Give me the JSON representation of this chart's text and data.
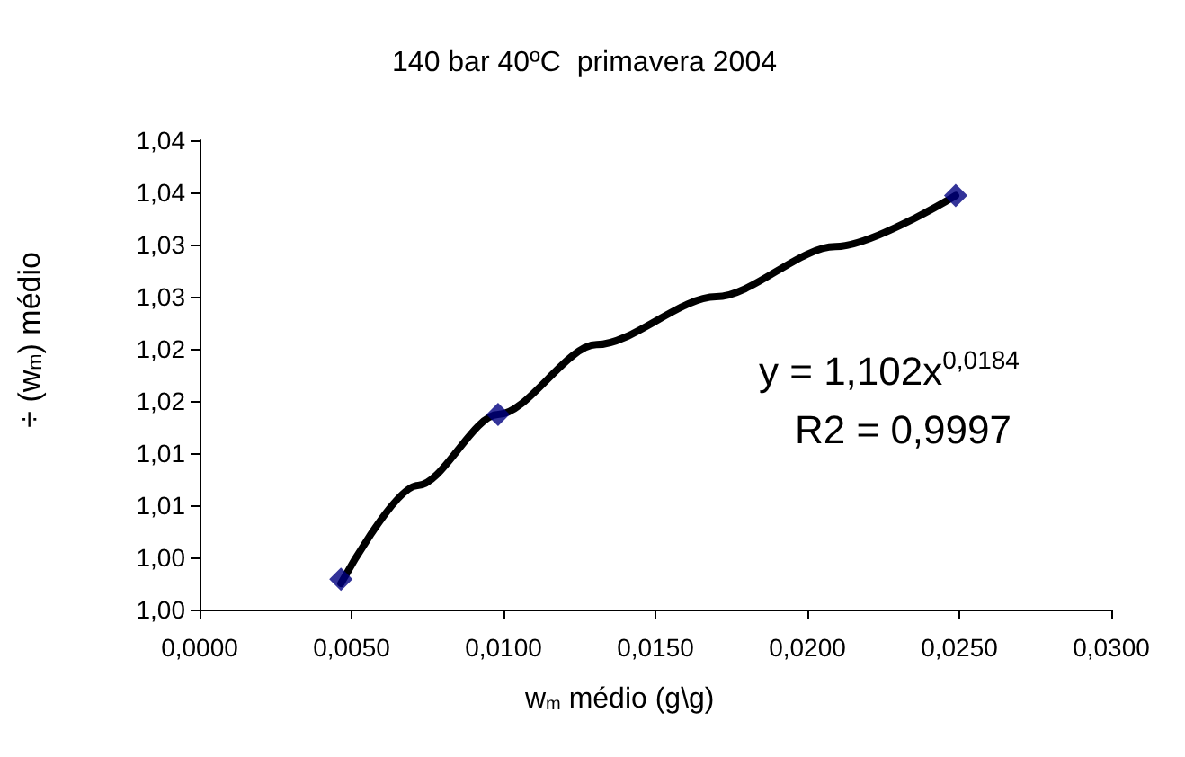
{
  "chart_data": {
    "type": "scatter",
    "title": "140 bar 40ºC  primavera 2004",
    "xlabel": "w$_{m}$ médio (g\\g)",
    "ylabel": "÷ (w$_{m}$) médio",
    "annotations": [
      "y = 1,102x$^{0,0184}$",
      "R2 = 0,9997"
    ],
    "series": [
      {
        "type": "line",
        "color": "#000000",
        "x": [
          0.00465,
          0.00718,
          0.00982,
          0.01306,
          0.017,
          0.02092,
          0.02488
        ],
        "values": [
          1.0025,
          1.0119,
          1.0187,
          1.0254,
          1.03,
          1.0348,
          1.0397
        ],
        "marker": "none"
      },
      {
        "color": "#000080",
        "x": [
          0.00465,
          0.00982,
          0.02488
        ],
        "values": [
          1.0029,
          1.0187,
          1.0397
        ],
        "marker": "diamond"
      }
    ],
    "xlim": [
      0,
      0.03
    ],
    "xticks": [
      {
        "value": 0,
        "label": "0,0000"
      },
      {
        "value": 0.005,
        "label": "0,0050"
      },
      {
        "value": 0.01,
        "label": "0,0100"
      },
      {
        "value": 0.015,
        "label": "0,0150"
      },
      {
        "value": 0.02,
        "label": "0,0200"
      },
      {
        "value": 0.025,
        "label": "0,0250"
      },
      {
        "value": 0.03,
        "label": "0,0300"
      }
    ],
    "ylim": [
      1.0,
      1.045
    ],
    "yticks": [
      {
        "value": 1.0,
        "label": "1,00"
      },
      {
        "value": 1.005,
        "label": "1,00"
      },
      {
        "value": 1.01,
        "label": "1,01"
      },
      {
        "value": 1.015,
        "label": "1,01"
      },
      {
        "value": 1.02,
        "label": "1,02"
      },
      {
        "value": 1.025,
        "label": "1,02"
      },
      {
        "value": 1.03,
        "label": "1,03"
      },
      {
        "value": 1.035,
        "label": "1,03"
      },
      {
        "value": 1.04,
        "label": "1,04"
      },
      {
        "value": 1.045,
        "label": "1,04"
      }
    ],
    "grid": false
  }
}
